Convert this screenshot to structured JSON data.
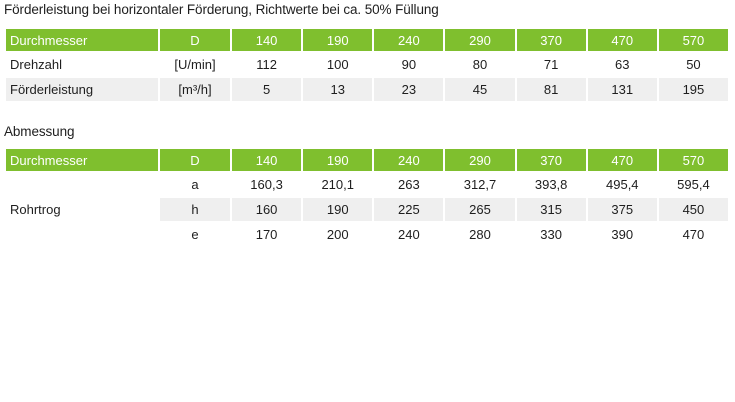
{
  "section1": {
    "title": "Förderleistung bei horizontaler Förderung, Richtwerte bei ca. 50% Füllung",
    "header": [
      "Durchmesser",
      "D",
      "140",
      "190",
      "240",
      "290",
      "370",
      "470",
      "570"
    ],
    "rows": [
      {
        "label": "Drehzahl",
        "unit": "[U/min]",
        "values": [
          "112",
          "100",
          "90",
          "80",
          "71",
          "63",
          "50"
        ]
      },
      {
        "label": "Förderleistung",
        "unit": "[m³/h]",
        "values": [
          "5",
          "13",
          "23",
          "45",
          "81",
          "131",
          "195"
        ]
      }
    ]
  },
  "section2": {
    "title": "Abmessung",
    "header": [
      "Durchmesser",
      "D",
      "140",
      "190",
      "240",
      "290",
      "370",
      "470",
      "570"
    ],
    "group_label": "Rohrtrog",
    "rows": [
      {
        "unit": "a",
        "values": [
          "160,3",
          "210,1",
          "263",
          "312,7",
          "393,8",
          "495,4",
          "595,4"
        ]
      },
      {
        "unit": "h",
        "values": [
          "160",
          "190",
          "225",
          "265",
          "315",
          "375",
          "450"
        ]
      },
      {
        "unit": "e",
        "values": [
          "170",
          "200",
          "240",
          "280",
          "330",
          "390",
          "470"
        ]
      }
    ]
  },
  "colors": {
    "header_green": "#7fbf2e",
    "row_shade": "#efefef",
    "header_text": "#ffffff"
  }
}
